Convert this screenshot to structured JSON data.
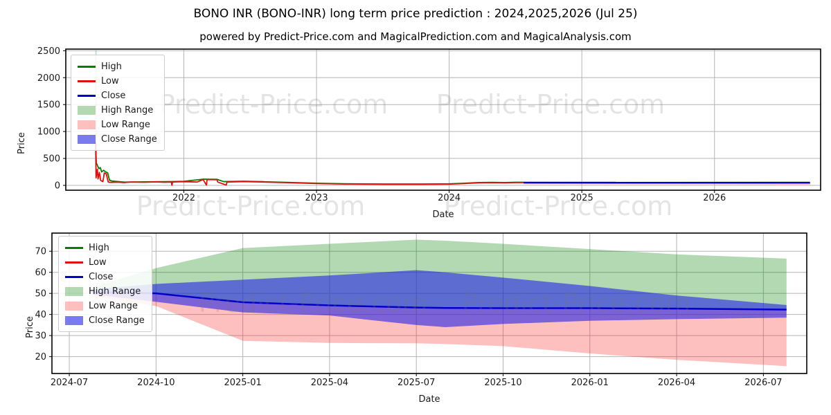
{
  "figure": {
    "title": "BONO INR (BONO-INR) long term price prediction : 2024,2025,2026 (Jul 25)",
    "subtitle": "powered by Predict-Price.com and MagicalPrediction.com and MagicalAnalysis.com",
    "watermark": {
      "text": "Predict-Price.com",
      "color": "rgba(120,120,120,0.20)"
    }
  },
  "legend": {
    "items": [
      {
        "label": "High",
        "swatch": "line",
        "color": "#008000"
      },
      {
        "label": "Low",
        "swatch": "line",
        "color": "#e01010"
      },
      {
        "label": "Close",
        "swatch": "line",
        "color": "#0000cd"
      },
      {
        "label": "High Range",
        "swatch": "patch",
        "color": "rgba(0,128,0,0.3)"
      },
      {
        "label": "Low Range",
        "swatch": "patch",
        "color": "rgba(250,30,25,0.28)"
      },
      {
        "label": "Close Range",
        "swatch": "patch",
        "color": "rgba(35,35,230,0.6)"
      }
    ]
  },
  "chart_data": [
    {
      "type": "line",
      "name": "history-and-prediction",
      "xlabel": "Date",
      "ylabel": "Price",
      "xlim": [
        2021.11,
        2026.8
      ],
      "ylim": [
        -90,
        2530
      ],
      "grid": true,
      "legend_position": "upper-left",
      "xticks": [
        {
          "v": 2022,
          "label": "2022"
        },
        {
          "v": 2023,
          "label": "2023"
        },
        {
          "v": 2024,
          "label": "2024"
        },
        {
          "v": 2025,
          "label": "2025"
        },
        {
          "v": 2026,
          "label": "2026"
        }
      ],
      "yticks": [
        {
          "v": 0,
          "label": "0"
        },
        {
          "v": 500,
          "label": "500"
        },
        {
          "v": 1000,
          "label": "1000"
        },
        {
          "v": 1500,
          "label": "1500"
        },
        {
          "v": 2000,
          "label": "2000"
        },
        {
          "v": 2500,
          "label": "2500"
        }
      ],
      "series": [
        {
          "name": "launch-low-range-strip",
          "type": "band",
          "color": "rgba(250,30,25,0.25)",
          "top": [
            [
              2021.332,
              2360
            ],
            [
              2021.343,
              2360
            ]
          ],
          "bottom": [
            [
              2021.332,
              700
            ],
            [
              2021.343,
              700
            ]
          ]
        },
        {
          "name": "launch-high-range-strip",
          "type": "band",
          "color": "rgba(0,128,0,0.25)",
          "top": [
            [
              2021.333,
              2510
            ],
            [
              2021.342,
              2510
            ]
          ],
          "bottom": [
            [
              2021.333,
              2350
            ],
            [
              2021.342,
              2350
            ]
          ]
        },
        {
          "name": "high-range",
          "type": "band",
          "color": "rgba(0,128,0,0.3)",
          "top": [
            [
              2024.56,
              62
            ],
            [
              2026.72,
              76
            ]
          ],
          "bottom": [
            [
              2024.56,
              58
            ],
            [
              2026.72,
              60
            ]
          ]
        },
        {
          "name": "low-range",
          "type": "band",
          "color": "rgba(250,30,25,0.28)",
          "top": [
            [
              2024.56,
              42
            ],
            [
              2026.72,
              36
            ]
          ],
          "bottom": [
            [
              2024.56,
              20
            ],
            [
              2026.72,
              13
            ]
          ]
        },
        {
          "name": "close-range",
          "type": "band",
          "color": "rgba(35,35,230,0.6)",
          "top": [
            [
              2024.56,
              58
            ],
            [
              2026.72,
              60
            ]
          ],
          "bottom": [
            [
              2024.56,
              42
            ],
            [
              2026.72,
              36
            ]
          ]
        },
        {
          "name": "high",
          "type": "line",
          "color": "#008000",
          "width": 1.8,
          "points": [
            [
              2021.335,
              800
            ],
            [
              2021.34,
              420
            ],
            [
              2021.35,
              360
            ],
            [
              2021.36,
              310
            ],
            [
              2021.37,
              330
            ],
            [
              2021.38,
              250
            ],
            [
              2021.395,
              280
            ],
            [
              2021.41,
              250
            ],
            [
              2021.425,
              235
            ],
            [
              2021.44,
              95
            ],
            [
              2021.46,
              80
            ],
            [
              2021.55,
              60
            ],
            [
              2021.7,
              65
            ],
            [
              2021.91,
              70
            ],
            [
              2022.0,
              75
            ],
            [
              2022.15,
              115
            ],
            [
              2022.25,
              112
            ],
            [
              2022.3,
              70
            ],
            [
              2022.45,
              76
            ],
            [
              2022.6,
              68
            ],
            [
              2022.8,
              54
            ],
            [
              2023.0,
              40
            ],
            [
              2023.2,
              30
            ],
            [
              2023.5,
              25
            ],
            [
              2023.8,
              25
            ],
            [
              2024.0,
              28
            ],
            [
              2024.1,
              38
            ],
            [
              2024.22,
              52
            ],
            [
              2024.32,
              56
            ],
            [
              2024.42,
              52
            ],
            [
              2024.5,
              57
            ],
            [
              2024.56,
              57
            ]
          ]
        },
        {
          "name": "low",
          "type": "line",
          "color": "#e01010",
          "width": 1.8,
          "points": [
            [
              2021.335,
              780
            ],
            [
              2021.338,
              140
            ],
            [
              2021.348,
              300
            ],
            [
              2021.353,
              120
            ],
            [
              2021.363,
              240
            ],
            [
              2021.373,
              90
            ],
            [
              2021.39,
              70
            ],
            [
              2021.4,
              230
            ],
            [
              2021.415,
              215
            ],
            [
              2021.43,
              60
            ],
            [
              2021.45,
              55
            ],
            [
              2021.5,
              60
            ],
            [
              2021.55,
              52
            ],
            [
              2021.6,
              62
            ],
            [
              2021.7,
              58
            ],
            [
              2021.79,
              65
            ],
            [
              2021.85,
              58
            ],
            [
              2021.905,
              62
            ],
            [
              2021.91,
              2
            ],
            [
              2021.915,
              62
            ],
            [
              2022.0,
              68
            ],
            [
              2022.1,
              62
            ],
            [
              2022.145,
              108
            ],
            [
              2022.17,
              5
            ],
            [
              2022.175,
              108
            ],
            [
              2022.25,
              105
            ],
            [
              2022.255,
              62
            ],
            [
              2022.32,
              5
            ],
            [
              2022.325,
              62
            ],
            [
              2022.45,
              70
            ],
            [
              2022.6,
              62
            ],
            [
              2022.8,
              48
            ],
            [
              2023.0,
              34
            ],
            [
              2023.2,
              25
            ],
            [
              2023.5,
              20
            ],
            [
              2023.8,
              20
            ],
            [
              2024.0,
              23
            ],
            [
              2024.1,
              32
            ],
            [
              2024.22,
              46
            ],
            [
              2024.32,
              50
            ],
            [
              2024.42,
              46
            ],
            [
              2024.5,
              52
            ],
            [
              2024.56,
              52
            ]
          ]
        },
        {
          "name": "close-prediction",
          "type": "line",
          "color": "#0000cd",
          "width": 2.5,
          "points": [
            [
              2024.56,
              51
            ],
            [
              2026.72,
              49
            ]
          ]
        }
      ]
    },
    {
      "type": "area",
      "name": "prediction-detail",
      "xlabel": "Date",
      "ylabel": "Price",
      "xlim": [
        -0.6,
        25.5
      ],
      "ylim": [
        12,
        78.6
      ],
      "grid": true,
      "legend_position": "upper-left",
      "xticks": [
        {
          "v": 0,
          "label": "2024-07"
        },
        {
          "v": 3,
          "label": "2024-10"
        },
        {
          "v": 6,
          "label": "2025-01"
        },
        {
          "v": 9,
          "label": "2025-04"
        },
        {
          "v": 12,
          "label": "2025-07"
        },
        {
          "v": 15,
          "label": "2025-10"
        },
        {
          "v": 18,
          "label": "2026-01"
        },
        {
          "v": 21,
          "label": "2026-04"
        },
        {
          "v": 24,
          "label": "2026-07"
        }
      ],
      "yticks": [
        {
          "v": 20,
          "label": "20"
        },
        {
          "v": 30,
          "label": "30"
        },
        {
          "v": 40,
          "label": "40"
        },
        {
          "v": 50,
          "label": "50"
        },
        {
          "v": 60,
          "label": "60"
        },
        {
          "v": 70,
          "label": "70"
        }
      ],
      "x_months": [
        0.8,
        3,
        6,
        9,
        12,
        13,
        15,
        18,
        21,
        24.8
      ],
      "series": [
        {
          "name": "high-range",
          "type": "band",
          "color": "rgba(0,128,0,0.3)",
          "top": [
            [
              0.8,
              53
            ],
            [
              3,
              62
            ],
            [
              6,
              71.5
            ],
            [
              9,
              73.5
            ],
            [
              12,
              75.5
            ],
            [
              13,
              75
            ],
            [
              15,
              73.5
            ],
            [
              18,
              71
            ],
            [
              21,
              68.5
            ],
            [
              24.8,
              66.5
            ]
          ],
          "bottom": [
            [
              0.8,
              50.5
            ],
            [
              3,
              50
            ],
            [
              6,
              45.8
            ],
            [
              9,
              44.3
            ],
            [
              12,
              43.3
            ],
            [
              13,
              43.1
            ],
            [
              15,
              43
            ],
            [
              18,
              43
            ],
            [
              21,
              42.8
            ],
            [
              24.8,
              42.3
            ]
          ]
        },
        {
          "name": "low-range",
          "type": "band",
          "color": "rgba(250,30,25,0.28)",
          "top": [
            [
              0.8,
              50.5
            ],
            [
              3,
              50
            ],
            [
              6,
              45.8
            ],
            [
              9,
              44.3
            ],
            [
              12,
              43.3
            ],
            [
              13,
              43.1
            ],
            [
              15,
              43
            ],
            [
              18,
              43
            ],
            [
              21,
              42.8
            ],
            [
              24.8,
              42.3
            ]
          ],
          "bottom": [
            [
              0.8,
              49
            ],
            [
              3,
              44
            ],
            [
              6,
              27.5
            ],
            [
              9,
              26.5
            ],
            [
              12,
              26.3
            ],
            [
              13,
              26
            ],
            [
              15,
              25
            ],
            [
              18,
              21.5
            ],
            [
              21,
              18.5
            ],
            [
              24.8,
              15.5
            ]
          ]
        },
        {
          "name": "close-range",
          "type": "band",
          "color": "rgba(35,35,230,0.6)",
          "top": [
            [
              0.8,
              52
            ],
            [
              3,
              54.5
            ],
            [
              6,
              56.5
            ],
            [
              9,
              58.5
            ],
            [
              12,
              61
            ],
            [
              13,
              60
            ],
            [
              15,
              57.5
            ],
            [
              18,
              53.5
            ],
            [
              21,
              49
            ],
            [
              24.8,
              44.5
            ]
          ],
          "bottom": [
            [
              0.8,
              49.5
            ],
            [
              3,
              46
            ],
            [
              6,
              41
            ],
            [
              9,
              39.5
            ],
            [
              12,
              35
            ],
            [
              13,
              34
            ],
            [
              15,
              35.5
            ],
            [
              18,
              37
            ],
            [
              21,
              37.8
            ],
            [
              24.8,
              38.5
            ]
          ]
        },
        {
          "name": "close",
          "type": "line",
          "color": "#0000c8",
          "width": 2.5,
          "points": [
            [
              0.8,
              50.5
            ],
            [
              3,
              50
            ],
            [
              6,
              45.8
            ],
            [
              9,
              44.3
            ],
            [
              12,
              43.3
            ],
            [
              13,
              43.1
            ],
            [
              15,
              43
            ],
            [
              18,
              43
            ],
            [
              21,
              42.8
            ],
            [
              24.8,
              42.3
            ]
          ]
        }
      ]
    }
  ]
}
